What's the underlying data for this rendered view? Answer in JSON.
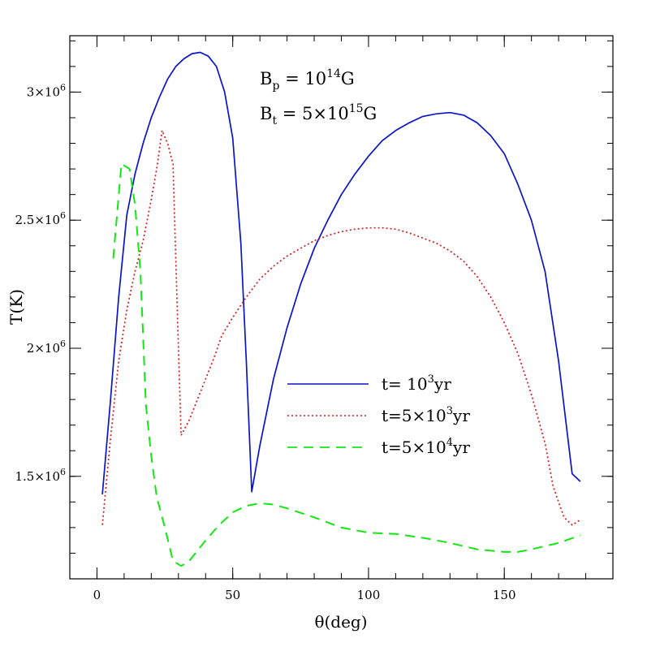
{
  "chart_data": {
    "type": "line",
    "xlabel": "θ(deg)",
    "ylabel": "T(K)",
    "xlim": [
      -10,
      190
    ],
    "ylim": [
      1100000,
      3220000
    ],
    "x_ticks": [
      {
        "value": 0,
        "label": "0"
      },
      {
        "value": 50,
        "label": "50"
      },
      {
        "value": 100,
        "label": "100"
      },
      {
        "value": 150,
        "label": "150"
      }
    ],
    "y_ticks": [
      {
        "value": 1500000,
        "mant": "1.5×10",
        "exp": "6"
      },
      {
        "value": 2000000,
        "mant": "2×10",
        "exp": "6"
      },
      {
        "value": 2500000,
        "mant": "2.5×10",
        "exp": "6"
      },
      {
        "value": 3000000,
        "mant": "3×10",
        "exp": "6"
      }
    ],
    "x_minor_step": 10,
    "y_minor_step": 100000,
    "annotations": [
      {
        "base": "B",
        "sub": "p",
        "mid": " = 10",
        "exp": "14",
        "tail": "G"
      },
      {
        "base": "B",
        "sub": "t",
        "mid": " = 5×10",
        "exp": "15",
        "tail": "G"
      }
    ],
    "series": [
      {
        "name": "t= 10³yr",
        "legend": {
          "pre": "t= 10",
          "exp": "3",
          "post": "yr"
        },
        "color": "#0a14c8",
        "dash": "",
        "x": [
          2,
          5,
          8,
          11,
          14,
          17,
          20,
          23,
          26,
          29,
          32,
          35,
          38,
          41,
          44,
          47,
          50,
          53,
          55,
          57,
          60,
          65,
          70,
          75,
          80,
          85,
          90,
          95,
          100,
          105,
          110,
          115,
          120,
          125,
          130,
          135,
          140,
          145,
          150,
          155,
          160,
          165,
          170,
          175,
          178
        ],
        "values": [
          1430000,
          1800000,
          2200000,
          2520000,
          2680000,
          2800000,
          2900000,
          2980000,
          3050000,
          3100000,
          3130000,
          3150000,
          3155000,
          3140000,
          3100000,
          3000000,
          2820000,
          2410000,
          1950000,
          1440000,
          1620000,
          1880000,
          2080000,
          2250000,
          2390000,
          2500000,
          2600000,
          2680000,
          2750000,
          2810000,
          2850000,
          2880000,
          2905000,
          2915000,
          2920000,
          2910000,
          2880000,
          2830000,
          2760000,
          2640000,
          2500000,
          2300000,
          1950000,
          1510000,
          1480000
        ]
      },
      {
        "name": "t=5×10³yr",
        "legend": {
          "pre": "t=5×10",
          "exp": "3",
          "post": "yr"
        },
        "color": "#d21e1e",
        "dash": "2,3",
        "x": [
          2,
          5,
          8,
          11,
          14,
          17,
          20,
          22,
          24,
          26,
          28,
          30,
          31,
          34,
          37,
          40,
          43,
          46,
          50,
          55,
          60,
          65,
          70,
          75,
          80,
          85,
          90,
          95,
          100,
          105,
          110,
          115,
          120,
          125,
          130,
          135,
          140,
          145,
          150,
          155,
          160,
          165,
          168,
          172,
          175,
          178
        ],
        "values": [
          1310000,
          1650000,
          1950000,
          2150000,
          2300000,
          2420000,
          2580000,
          2700000,
          2850000,
          2800000,
          2720000,
          2000000,
          1660000,
          1720000,
          1800000,
          1880000,
          1960000,
          2050000,
          2120000,
          2200000,
          2270000,
          2320000,
          2360000,
          2390000,
          2420000,
          2440000,
          2455000,
          2465000,
          2470000,
          2470000,
          2465000,
          2450000,
          2430000,
          2410000,
          2380000,
          2340000,
          2280000,
          2200000,
          2100000,
          1980000,
          1820000,
          1630000,
          1460000,
          1340000,
          1310000,
          1330000
        ]
      },
      {
        "name": "t=5×10⁴yr",
        "legend": {
          "pre": "t=5×10",
          "exp": "4",
          "post": "yr"
        },
        "color": "#14e614",
        "dash": "12,8",
        "x": [
          6,
          9,
          12,
          14,
          16,
          18,
          20,
          22,
          25,
          28,
          31,
          34,
          37,
          40,
          45,
          50,
          55,
          60,
          65,
          70,
          80,
          90,
          100,
          110,
          120,
          130,
          140,
          150,
          155,
          160,
          170,
          178
        ],
        "values": [
          2350000,
          2720000,
          2700000,
          2560000,
          2300000,
          1780000,
          1580000,
          1420000,
          1300000,
          1170000,
          1150000,
          1170000,
          1210000,
          1250000,
          1310000,
          1360000,
          1385000,
          1395000,
          1390000,
          1375000,
          1340000,
          1300000,
          1280000,
          1275000,
          1260000,
          1240000,
          1215000,
          1205000,
          1205000,
          1215000,
          1240000,
          1270000
        ]
      }
    ]
  }
}
